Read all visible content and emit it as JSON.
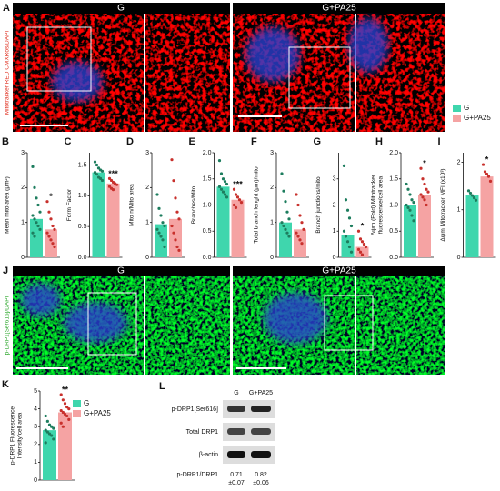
{
  "legend": {
    "entries": [
      {
        "name": "G",
        "color": "#3fd6ad",
        "dot": "#1d7d5e"
      },
      {
        "name": "G+PA25",
        "color": "#f5a3a3",
        "dot": "#c8302c"
      }
    ]
  },
  "row_a": {
    "letter": "A",
    "side_label": "Mitotracker RED CMXRos/DAPI",
    "headers": [
      "G",
      "G+PA25"
    ]
  },
  "row_j": {
    "letter": "J",
    "side_label": "p-DRP1[Ser616]/DAPI",
    "headers": [
      "G",
      "G+PA25"
    ]
  },
  "panels": [
    {
      "letter": "B",
      "ylabel": [
        "Mean mito area (μm²)"
      ],
      "ylim": [
        0,
        3
      ],
      "yticks": [
        0,
        1,
        2,
        3
      ],
      "sig": "*",
      "groups": [
        {
          "mean": 1.1,
          "points": [
            2.6,
            2.0,
            1.7,
            1.5,
            1.3,
            1.2,
            1.1,
            1.0,
            0.9,
            0.8,
            0.7,
            0.6
          ]
        },
        {
          "mean": 0.8,
          "points": [
            1.6,
            1.3,
            1.1,
            0.9,
            0.8,
            0.7,
            0.6,
            0.5,
            0.4,
            0.3
          ]
        }
      ]
    },
    {
      "letter": "C",
      "ylabel": [
        "Form Factor"
      ],
      "ylim": [
        0,
        1.7
      ],
      "yticks": [
        {
          "value": 0,
          "label": "0.0"
        },
        0.5,
        {
          "value": 1,
          "label": "1.0"
        },
        1.5
      ],
      "sig": "***",
      "groups": [
        {
          "mean": 1.38,
          "points": [
            1.55,
            1.5,
            1.45,
            1.42,
            1.4,
            1.38,
            1.35,
            1.3,
            1.28,
            1.25
          ]
        },
        {
          "mean": 1.2,
          "points": [
            1.28,
            1.25,
            1.22,
            1.2,
            1.18,
            1.15,
            1.12,
            1.1
          ]
        }
      ]
    },
    {
      "letter": "D",
      "ylabel": [
        "Mito n/Mito area"
      ],
      "ylim": [
        0,
        3
      ],
      "yticks": [
        0,
        1,
        2,
        3
      ],
      "groups": [
        {
          "mean": 0.95,
          "points": [
            1.8,
            1.4,
            1.2,
            1.0,
            0.9,
            0.8,
            0.7,
            0.6,
            0.5,
            0.3
          ]
        },
        {
          "mean": 1.1,
          "points": [
            2.8,
            2.2,
            1.7,
            1.3,
            1.1,
            0.9,
            0.7,
            0.5,
            0.3,
            0.2
          ]
        }
      ]
    },
    {
      "letter": "E",
      "ylabel": [
        "Branches/Mito"
      ],
      "ylim": [
        0,
        2
      ],
      "yticks": [
        {
          "value": 0,
          "label": "0.0"
        },
        0.5,
        {
          "value": 1,
          "label": "1.0"
        },
        1.5,
        {
          "value": 2,
          "label": "2.0"
        }
      ],
      "sig": "***",
      "groups": [
        {
          "mean": 1.35,
          "points": [
            1.85,
            1.6,
            1.5,
            1.45,
            1.4,
            1.35,
            1.3,
            1.25,
            1.2,
            1.15
          ]
        },
        {
          "mean": 1.1,
          "points": [
            1.3,
            1.2,
            1.15,
            1.1,
            1.05,
            1.0,
            0.95
          ]
        }
      ]
    },
    {
      "letter": "F",
      "ylabel": [
        "Total branch lenght (μm)/mito"
      ],
      "ylim": [
        0,
        3
      ],
      "yticks": [
        0,
        1,
        2,
        3
      ],
      "groups": [
        {
          "mean": 1.0,
          "points": [
            2.4,
            1.9,
            1.6,
            1.3,
            1.1,
            1.0,
            0.9,
            0.8,
            0.7,
            0.6
          ]
        },
        {
          "mean": 0.8,
          "points": [
            1.8,
            1.5,
            1.2,
            1.0,
            0.8,
            0.7,
            0.6,
            0.5,
            0.4
          ]
        }
      ]
    },
    {
      "letter": "G",
      "ylabel": [
        "Branch junctions/mito"
      ],
      "ylim": [
        0,
        4
      ],
      "yticks": [
        0,
        1,
        2,
        3
      ],
      "sig": "*",
      "groups": [
        {
          "mean": 0.85,
          "points": [
            3.5,
            2.2,
            1.8,
            1.5,
            1.2,
            1.0,
            0.8,
            0.6,
            0.4,
            0.2
          ]
        },
        {
          "mean": 0.4,
          "points": [
            1.0,
            0.7,
            0.6,
            0.5,
            0.4,
            0.3,
            0.2,
            0.1
          ]
        }
      ]
    },
    {
      "letter": "H",
      "ylabel": [
        "Δψm (Fold) Mitotracker",
        "fluorescence/cell area"
      ],
      "ylim": [
        0,
        2
      ],
      "yticks": [
        {
          "value": 0,
          "label": "0.0"
        },
        0.5,
        {
          "value": 1,
          "label": "1.0"
        },
        1.5,
        {
          "value": 2,
          "label": "2.0"
        }
      ],
      "sig": "*",
      "groups": [
        {
          "mean": 1.0,
          "points": [
            1.4,
            1.3,
            1.2,
            1.1,
            1.05,
            1.0,
            0.95,
            0.9,
            0.8,
            0.7
          ]
        },
        {
          "mean": 1.2,
          "points": [
            1.7,
            1.5,
            1.4,
            1.3,
            1.25,
            1.2,
            1.15,
            1.1,
            1.0
          ]
        }
      ]
    },
    {
      "letter": "I",
      "ylabel": [
        "Δψm Mitotracker MFI (x10³)"
      ],
      "ylim": [
        0,
        2.2
      ],
      "yticks": [
        0,
        1,
        2
      ],
      "sig": "*",
      "groups": [
        {
          "mean": 1.3,
          "points": [
            1.4,
            1.35,
            1.3,
            1.25,
            1.2
          ]
        },
        {
          "mean": 1.7,
          "points": [
            1.95,
            1.8,
            1.75,
            1.7,
            1.6
          ]
        }
      ]
    }
  ],
  "panel_k": {
    "letter": "K",
    "ylabel": [
      "p-DRP1 Fluorescence",
      "Intensity/cell area"
    ],
    "ylim": [
      0,
      5
    ],
    "yticks": [
      0,
      1,
      2,
      3,
      4,
      5
    ],
    "sig": "**",
    "groups": [
      {
        "mean": 2.8,
        "points": [
          3.6,
          3.3,
          3.1,
          3.0,
          2.9,
          2.8,
          2.7,
          2.6,
          2.5,
          2.3,
          2.1
        ]
      },
      {
        "mean": 3.8,
        "points": [
          4.8,
          4.5,
          4.3,
          4.1,
          4.0,
          3.9,
          3.8,
          3.7,
          3.6,
          3.4,
          3.2,
          3.0
        ]
      }
    ],
    "legend": {
      "entries": [
        {
          "name": "G",
          "color": "#3fd6ad"
        },
        {
          "name": "G+PA25",
          "color": "#f5a3a3"
        }
      ]
    }
  },
  "blot": {
    "letter": "L",
    "lanes": [
      "G",
      "G+PA25"
    ],
    "rows": [
      "p-DRP1[Ser616]",
      "Total DRP1",
      "β-actin"
    ],
    "ratio_label": "p-DRP1/DRP1",
    "ratios": [
      [
        "0.71",
        "±0.07"
      ],
      [
        "0.82",
        "±0.06"
      ]
    ]
  }
}
